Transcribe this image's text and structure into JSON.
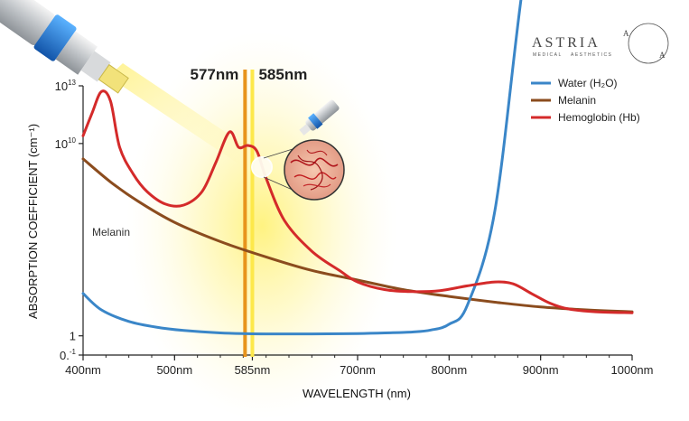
{
  "brand": {
    "name": "ASTRIA",
    "sub_left": "MEDICAL",
    "sub_right": "AESTHETICS",
    "mark_a": "A"
  },
  "chart_data": {
    "type": "line",
    "xlabel": "WAVELENGTH (nm)",
    "ylabel": "ABSORPTION COEFFICIENT (cm⁻¹)",
    "xlim": [
      400,
      1000
    ],
    "yscale": "log",
    "ylim": [
      "10^-1",
      "10^13"
    ],
    "x_ticks": [
      "400nm",
      "500nm",
      "585nm",
      "700nm",
      "800nm",
      "900nm",
      "1000nm"
    ],
    "y_ticks": [
      {
        "base": "10",
        "exp": "13"
      },
      {
        "base": "10",
        "exp": "10"
      },
      {
        "base": "1",
        "exp": ""
      },
      {
        "base": "0.",
        "exp": "-1"
      }
    ],
    "lasers": [
      {
        "label": "577nm",
        "x": 577,
        "color": "#e8941c"
      },
      {
        "label": "585nm",
        "x": 585,
        "color": "#fde84a"
      }
    ],
    "annotation": "Melanin",
    "legend_position": "top-right",
    "series": [
      {
        "name": "Water (H₂O)",
        "color": "#3a86c8",
        "x": [
          400,
          420,
          450,
          480,
          510,
          550,
          580,
          600,
          650,
          700,
          730,
          760,
          780,
          800,
          820,
          850,
          880,
          910,
          930,
          950,
          970,
          1000
        ],
        "y": [
          2.2,
          1.35,
          0.75,
          0.45,
          0.28,
          0.15,
          0.11,
          0.1,
          0.1,
          0.12,
          0.15,
          0.2,
          0.3,
          0.6,
          1.6,
          6.5,
          18,
          27,
          45,
          130,
          250,
          420
        ]
      },
      {
        "name": "Melanin",
        "color": "#8b4c1e",
        "x": [
          400,
          430,
          460,
          500,
          550,
          600,
          650,
          700,
          750,
          800,
          850,
          900,
          950,
          1000
        ],
        "y": [
          9.2,
          8.0,
          7.0,
          5.9,
          4.9,
          4.1,
          3.4,
          2.9,
          2.4,
          2.05,
          1.75,
          1.5,
          1.35,
          1.25
        ]
      },
      {
        "name": "Hemoglobin (Hb)",
        "color": "#d42a2a",
        "x": [
          400,
          410,
          420,
          430,
          440,
          455,
          470,
          490,
          510,
          530,
          545,
          560,
          570,
          580,
          590,
          600,
          620,
          650,
          680,
          700,
          730,
          760,
          790,
          820,
          850,
          870,
          890,
          910,
          930,
          960,
          1000
        ],
        "y": [
          10.4,
          11.6,
          12.7,
          12.2,
          9.8,
          8.4,
          7.5,
          6.85,
          6.8,
          7.5,
          9.0,
          10.6,
          9.8,
          9.9,
          9.6,
          8.2,
          6.0,
          4.4,
          3.4,
          2.8,
          2.4,
          2.3,
          2.35,
          2.6,
          2.8,
          2.7,
          2.2,
          1.7,
          1.4,
          1.25,
          1.2
        ]
      }
    ]
  }
}
